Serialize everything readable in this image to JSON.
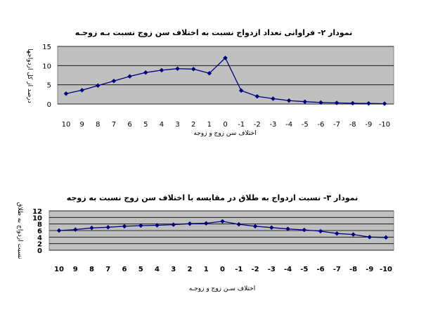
{
  "chart_data": [
    {
      "type": "line",
      "title": "نمودار ۲- فراوانی تعداد ازدواج نسبت به اختلاف سن زوج نسبت بـه زوجـه",
      "xlabel": "اختلاف سن زوج و زوجه",
      "ylabel": "درصد از کل ازدواجها",
      "ylim": [
        0,
        15
      ],
      "yticks": [
        "0",
        "5",
        "10",
        "15"
      ],
      "grid": true,
      "background_color": "#c0c0c0",
      "line_color": "#000080",
      "categories": [
        "10",
        "9",
        "8",
        "7",
        "6",
        "5",
        "4",
        "3",
        "2",
        "1",
        "0",
        "-1",
        "-2",
        "-3",
        "-4",
        "-5",
        "-6",
        "-7",
        "-8",
        "-9",
        "-10"
      ],
      "series": [
        {
          "values": [
            2.7,
            3.6,
            4.8,
            6.0,
            7.2,
            8.2,
            8.8,
            9.2,
            9.1,
            8.0,
            12.0,
            3.5,
            2.0,
            1.4,
            0.9,
            0.6,
            0.4,
            0.3,
            0.2,
            0.15,
            0.1
          ]
        }
      ]
    },
    {
      "type": "line",
      "title": "نمودار ۳- نسبت ازدواج به طلاق در مقایسه با اختلاف سن زوج نسبت به زوجه",
      "xlabel": "اختلاف سـن زوج و زوجـه",
      "ylabel": "نسبت ازدواج به طلاق",
      "yticks": [
        "0",
        "2",
        "4",
        "6",
        "8",
        "10",
        "12"
      ],
      "ylim": [
        0,
        12
      ],
      "grid": true,
      "background_color": "#c0c0c0",
      "line_color": "#000080",
      "categories": [
        "10",
        "9",
        "8",
        "7",
        "6",
        "5",
        "4",
        "3",
        "2",
        "1",
        "0",
        "-1",
        "-2",
        "-3",
        "-4",
        "-5",
        "-6",
        "-7",
        "-8",
        "-9",
        "-10"
      ],
      "series": [
        {
          "values": [
            6.0,
            6.3,
            6.8,
            7.0,
            7.3,
            7.5,
            7.6,
            7.8,
            8.1,
            8.2,
            8.8,
            7.9,
            7.3,
            6.9,
            6.5,
            6.2,
            5.8,
            5.1,
            4.8,
            4.0,
            3.9
          ]
        }
      ]
    }
  ]
}
